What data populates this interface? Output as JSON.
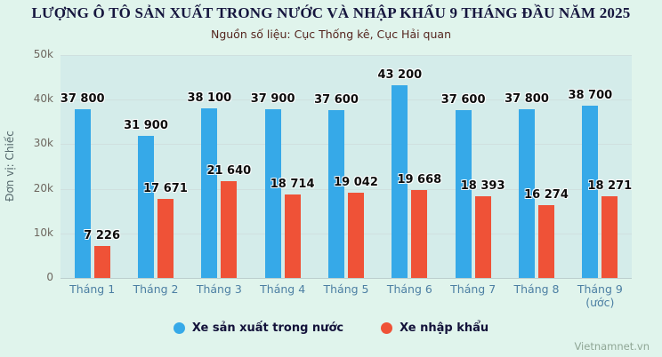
{
  "header": {
    "title": "LƯỢNG Ô TÔ SẢN XUẤT TRONG NƯỚC VÀ NHẬP KHẨU 9 THÁNG ĐẦU NĂM 2025",
    "subtitle": "Nguồn số liệu: Cục Thống kê, Cục Hải quan"
  },
  "watermark": "Vietnamnet.vn",
  "chart_data": {
    "type": "bar",
    "title": "LƯỢNG Ô TÔ SẢN XUẤT TRONG NƯỚC VÀ NHẬP KHẨU 9 THÁNG ĐẦU NĂM 2025",
    "subtitle": "Nguồn số liệu: Cục Thống kê, Cục Hải quan",
    "ylabel": "Đơn vị: Chiếc",
    "ylim": [
      0,
      50000
    ],
    "grid": true,
    "legend_position": "bottom",
    "yticks": [
      "0",
      "10k",
      "20k",
      "30k",
      "40k",
      "50k"
    ],
    "categories": [
      {
        "line1": "Tháng 1",
        "line2": ""
      },
      {
        "line1": "Tháng 2",
        "line2": ""
      },
      {
        "line1": "Tháng 3",
        "line2": ""
      },
      {
        "line1": "Tháng 4",
        "line2": ""
      },
      {
        "line1": "Tháng 5",
        "line2": ""
      },
      {
        "line1": "Tháng 6",
        "line2": ""
      },
      {
        "line1": "Tháng 7",
        "line2": ""
      },
      {
        "line1": "Tháng 8",
        "line2": ""
      },
      {
        "line1": "Tháng 9",
        "line2": "(ước)"
      }
    ],
    "series": [
      {
        "name": "Xe sản xuất trong nước",
        "color": "#36a9e8",
        "values": [
          37800,
          31900,
          38100,
          37900,
          37600,
          43200,
          37600,
          37800,
          38700
        ],
        "labels": [
          "37 800",
          "31 900",
          "38 100",
          "37 900",
          "37 600",
          "43 200",
          "37 600",
          "37 800",
          "38 700"
        ]
      },
      {
        "name": "Xe nhập khẩu",
        "color": "#ef5237",
        "values": [
          7226,
          17671,
          21640,
          18714,
          19042,
          19668,
          18393,
          16274,
          18271
        ],
        "labels": [
          "7 226",
          "17 671",
          "21 640",
          "18 714",
          "19 042",
          "19 668",
          "18 393",
          "16 274",
          "18 271"
        ]
      }
    ]
  }
}
